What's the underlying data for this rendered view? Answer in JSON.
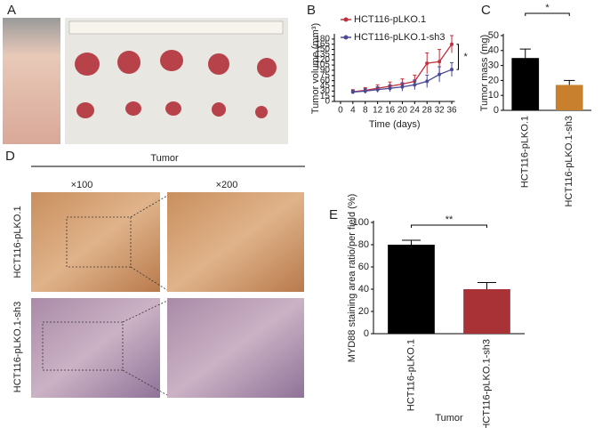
{
  "figure": {
    "panel_labels": [
      "A",
      "B",
      "C",
      "D",
      "E"
    ],
    "histology": {
      "header": "Tumor",
      "magnifications": [
        "×100",
        "×200"
      ],
      "rows": [
        "HCT116-pLKO.1",
        "HCT116-pLKO.1-sh3"
      ]
    }
  },
  "chart_data": [
    {
      "type": "line",
      "x_label": "Time (days)",
      "y_label": "Tumor volume (mm³)",
      "x": [
        4,
        8,
        12,
        16,
        20,
        24,
        28,
        32,
        36
      ],
      "series": [
        {
          "name": "HCT116-pLKO.1",
          "color": "#c0303a",
          "values": [
            28,
            32,
            38,
            44,
            50,
            58,
            110,
            115,
            165
          ],
          "errors": [
            6,
            8,
            10,
            12,
            15,
            18,
            30,
            35,
            25
          ]
        },
        {
          "name": "HCT116-pLKO.1-sh3",
          "color": "#4a4a96",
          "values": [
            27,
            30,
            34,
            38,
            42,
            48,
            58,
            78,
            92
          ],
          "errors": [
            5,
            7,
            8,
            10,
            12,
            14,
            18,
            22,
            20
          ]
        }
      ],
      "xlim": [
        -2,
        37
      ],
      "xticks": [
        0,
        4,
        8,
        12,
        16,
        20,
        24,
        28,
        32,
        36
      ],
      "ylim": [
        0,
        190
      ],
      "yticks": [
        0,
        15,
        30,
        45,
        60,
        75,
        90,
        105,
        120,
        135,
        150,
        165,
        180
      ],
      "annotation": "*"
    },
    {
      "type": "bar",
      "y_label": "Tumor mass (mg)",
      "categories": [
        "HCT116-pLKO.1",
        "HCT116-pLKO.1-sh3"
      ],
      "values": [
        35,
        17
      ],
      "errors": [
        6,
        3
      ],
      "colors": [
        "#000000",
        "#c8802e"
      ],
      "ylim": [
        0,
        50
      ],
      "yticks": [
        0,
        10,
        20,
        30,
        40,
        50
      ],
      "annotation": "*"
    },
    {
      "type": "bar",
      "y_label": "MYD88 staining area ratio/per field (%)",
      "x_label": "Tumor",
      "categories": [
        "HCT116-pLKO.1",
        "HCT116-pLKO.1-sh3"
      ],
      "values": [
        80,
        40
      ],
      "errors": [
        4,
        6
      ],
      "colors": [
        "#000000",
        "#a83236"
      ],
      "ylim": [
        0,
        100
      ],
      "yticks": [
        0,
        20,
        40,
        60,
        80,
        100
      ],
      "annotation": "**"
    }
  ]
}
